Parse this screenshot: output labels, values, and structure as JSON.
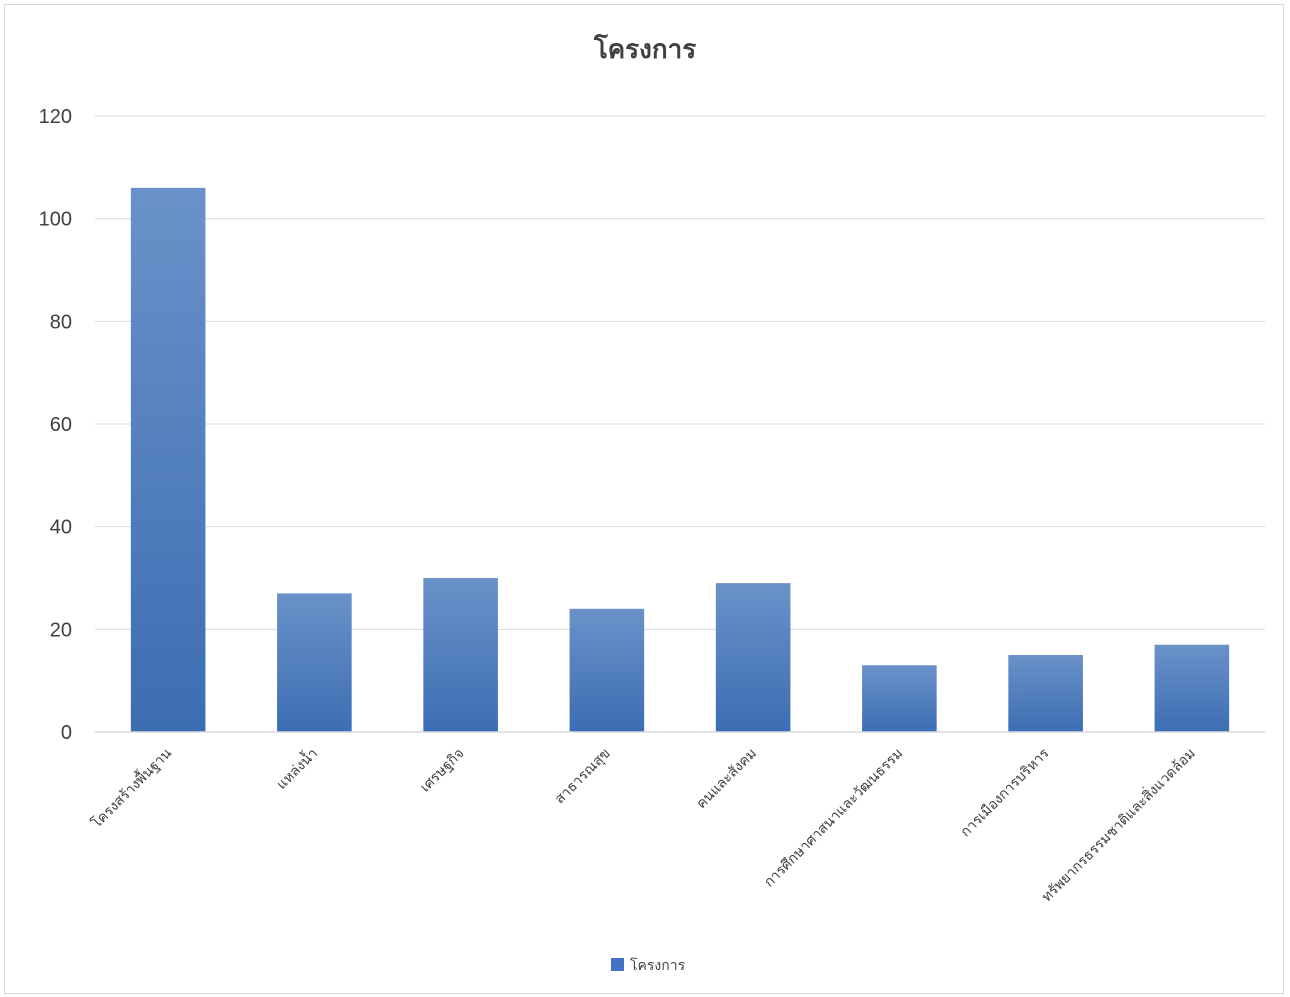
{
  "chart_data": {
    "type": "bar",
    "title": "โครงการ",
    "categories": [
      "โครงสร้างพื้นฐาน",
      "แหล่งน้ำ",
      "เศรษฐกิจ",
      "สาธารณสุข",
      "คนและสังคม",
      "การศึกษาศาสนาและวัฒนธรรม",
      "การเมืองการบริหาร",
      "ทรัพยากรธรรมชาติและสิ่งแวดล้อม"
    ],
    "series": [
      {
        "name": "โครงการ",
        "values": [
          106,
          27,
          30,
          24,
          29,
          13,
          15,
          17
        ]
      }
    ],
    "ylim": [
      0,
      120
    ],
    "yticks": [
      0,
      20,
      40,
      60,
      80,
      100,
      120
    ],
    "xlabel": "",
    "ylabel": "",
    "grid": true,
    "legend": "bottom",
    "colors": {
      "bar_top": "#6a92c9",
      "bar_bottom": "#3c6db3",
      "grid": "#d9d9d9",
      "text": "#404040",
      "legend_swatch": "#4472c4"
    }
  }
}
